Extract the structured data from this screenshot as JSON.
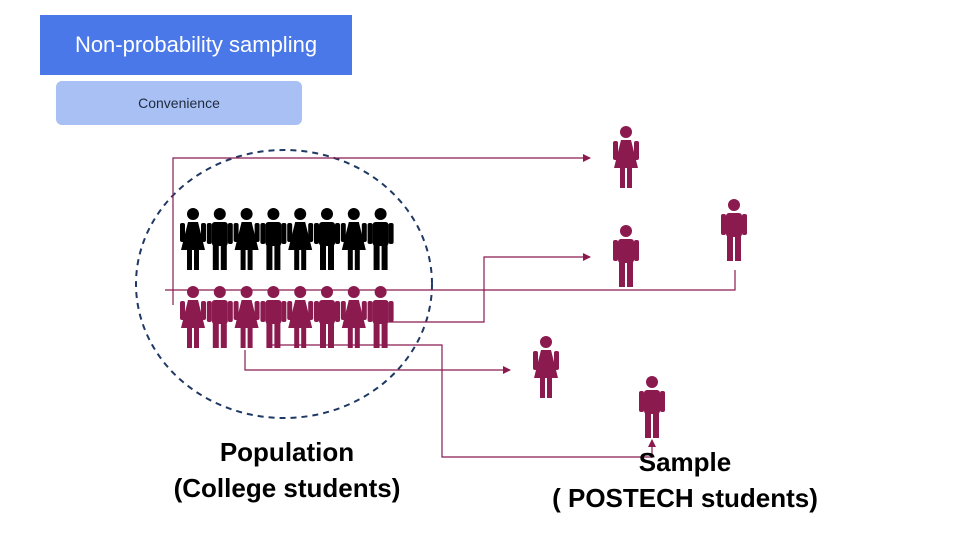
{
  "header": {
    "title": "Non-probability sampling",
    "method": "Convenience"
  },
  "population": {
    "label": "Population",
    "sublabel": "(College students)",
    "rows": [
      {
        "group": "general",
        "pattern": [
          "female",
          "male",
          "female",
          "male",
          "female",
          "male",
          "female",
          "male"
        ]
      },
      {
        "group": "sampled",
        "pattern": [
          "female",
          "male",
          "female",
          "male",
          "female",
          "male",
          "female",
          "male"
        ]
      }
    ]
  },
  "sample": {
    "label": "Sample",
    "sublabel": "( POSTECH students)",
    "members": [
      "female",
      "male",
      "male",
      "female",
      "male"
    ]
  },
  "colors": {
    "title_bg": "#4a78e8",
    "method_bg": "#a9c0f5",
    "population_general": "#000000",
    "population_sampled": "#8b1a4f",
    "arrow": "#8b1a4f",
    "circle": "#1f3864"
  },
  "icons": {
    "person_female": "female-person-icon",
    "person_male": "male-person-icon"
  }
}
